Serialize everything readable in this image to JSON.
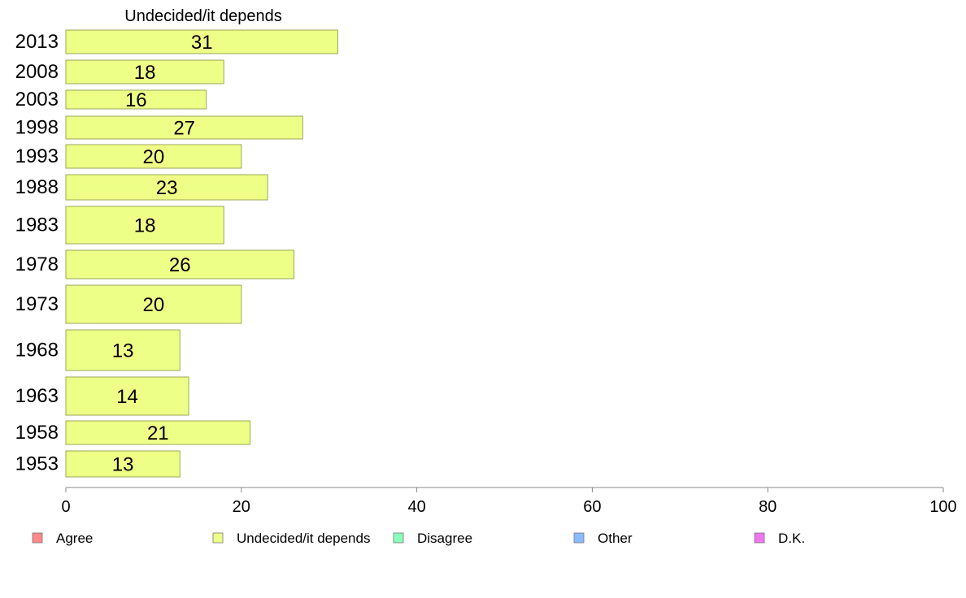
{
  "chart_data": {
    "type": "bar",
    "orientation": "horizontal",
    "title": "Undecided/it depends",
    "categories": [
      "2013",
      "2008",
      "2003",
      "1998",
      "1993",
      "1988",
      "1983",
      "1978",
      "1973",
      "1968",
      "1963",
      "1958",
      "1953"
    ],
    "values": [
      31,
      18,
      16,
      27,
      20,
      23,
      18,
      26,
      20,
      13,
      14,
      21,
      13
    ],
    "xlim": [
      0,
      100
    ],
    "xticks": [
      0,
      20,
      40,
      60,
      80,
      100
    ],
    "bar_color": "#eeff88",
    "bar_stroke": "#9aaa55",
    "grid": false,
    "legend_position": "bottom",
    "legend": [
      {
        "name": "Agree",
        "color": "#ff8888"
      },
      {
        "name": "Undecided/it depends",
        "color": "#eeff88"
      },
      {
        "name": "Disagree",
        "color": "#88ffbb"
      },
      {
        "name": "Other",
        "color": "#88bbff"
      },
      {
        "name": "D.K.",
        "color": "#ee77ee"
      }
    ]
  }
}
